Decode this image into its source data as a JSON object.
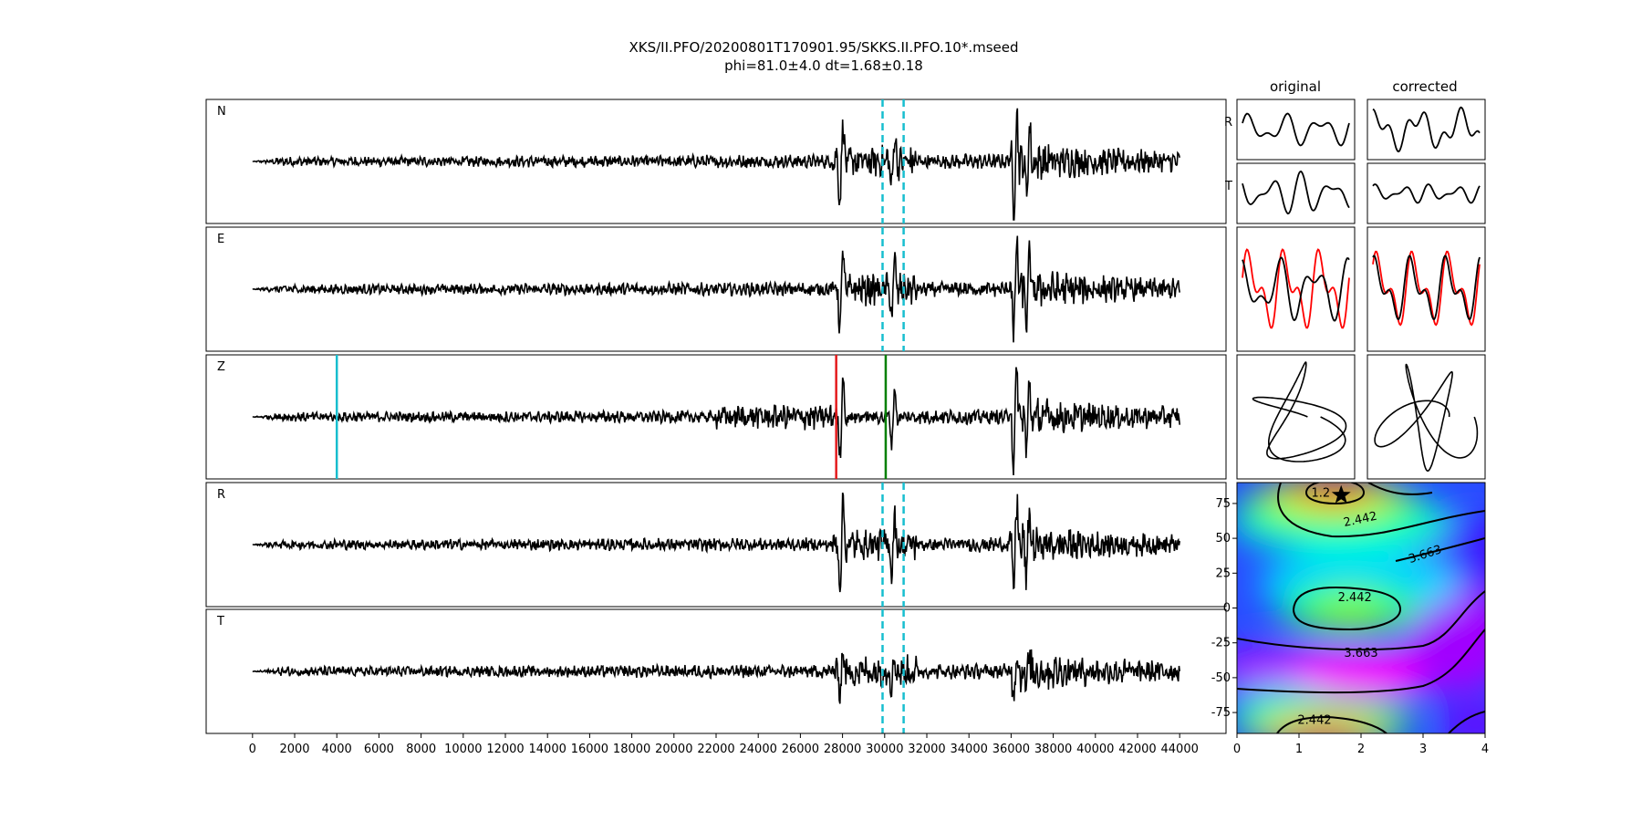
{
  "figure": {
    "title_line1": "XKS/II.PFO/20200801T170901.95/SKKS.II.PFO.10*.mseed",
    "title_line2": "phi=81.0±4.0 dt=1.68±0.18"
  },
  "chart_data": [
    {
      "type": "line",
      "panel": "waveforms",
      "series": [
        {
          "name": "N",
          "label": "N"
        },
        {
          "name": "E",
          "label": "E"
        },
        {
          "name": "Z",
          "label": "Z"
        },
        {
          "name": "R",
          "label": "R"
        },
        {
          "name": "T",
          "label": "T"
        }
      ],
      "xlim": [
        -2200,
        46200
      ],
      "x_ticks": [
        0,
        2000,
        4000,
        6000,
        8000,
        10000,
        12000,
        14000,
        16000,
        18000,
        20000,
        22000,
        24000,
        26000,
        28000,
        30000,
        32000,
        34000,
        36000,
        38000,
        40000,
        42000,
        44000
      ],
      "trace_span": [
        0,
        44000
      ],
      "spikes": [
        {
          "x": 27950,
          "amp": 0.9
        },
        {
          "x": 30400,
          "amp": 0.6
        },
        {
          "x": 36200,
          "amp": 1.0
        },
        {
          "x": 36800,
          "amp": 0.7
        }
      ],
      "window_lines": [
        {
          "x": 29900,
          "color": "#17becf",
          "style": "dashed",
          "traces": [
            "N",
            "E",
            "R",
            "T"
          ]
        },
        {
          "x": 30900,
          "color": "#17becf",
          "style": "dashed",
          "traces": [
            "N",
            "E",
            "R",
            "T"
          ]
        }
      ],
      "pick_lines": [
        {
          "x": 4000,
          "color": "#17becf",
          "trace": "Z"
        },
        {
          "x": 27700,
          "color": "#e41a1c",
          "trace": "Z"
        },
        {
          "x": 30050,
          "color": "#008000",
          "trace": "Z"
        }
      ]
    },
    {
      "type": "line",
      "panel": "particle-motion",
      "column_titles": [
        "original",
        "corrected"
      ],
      "row_labels": [
        "R",
        "T"
      ],
      "colors": {
        "trace": "#000000",
        "overlay": "#ff0000"
      }
    },
    {
      "type": "heatmap",
      "panel": "error-surface",
      "xlim": [
        0,
        4
      ],
      "ylim": [
        -90,
        90
      ],
      "x_ticks": [
        0,
        1,
        2,
        3,
        4
      ],
      "y_ticks": [
        75,
        50,
        25,
        0,
        -25,
        -50,
        -75
      ],
      "contour_labels": [
        {
          "text": "1.2",
          "x": 1.35,
          "y": 80
        },
        {
          "text": "2.442",
          "x": 2.0,
          "y": 61
        },
        {
          "text": "3.663",
          "x": 3.05,
          "y": 36
        },
        {
          "text": "2.442",
          "x": 1.9,
          "y": 5
        },
        {
          "text": "3.663",
          "x": 2.0,
          "y": -35
        },
        {
          "text": "2.442",
          "x": 1.25,
          "y": -83
        }
      ],
      "best_fit": {
        "x": 1.68,
        "y": 81.0
      }
    }
  ]
}
